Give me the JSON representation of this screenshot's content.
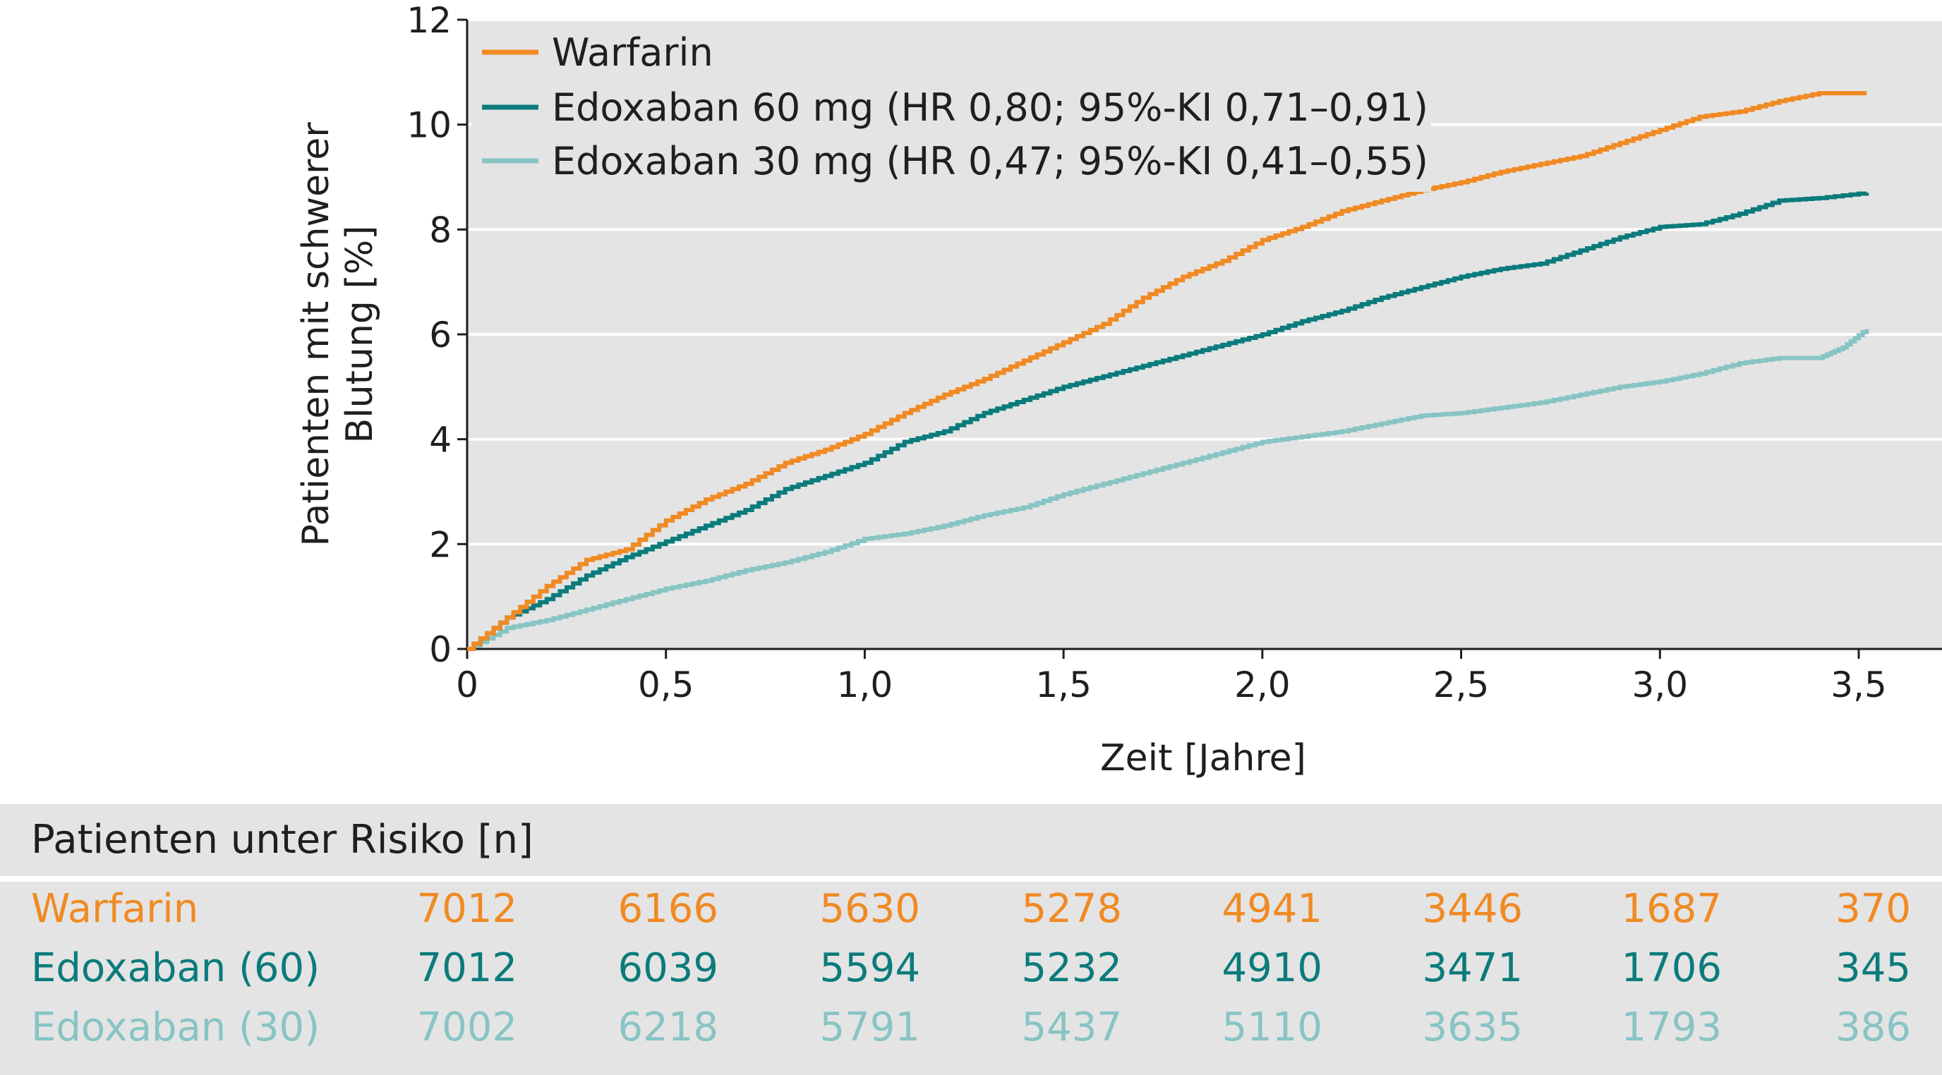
{
  "chart_data": {
    "type": "line",
    "title": "",
    "xlabel": "Zeit [Jahre]",
    "ylabel_lines": [
      "Patienten mit schwerer",
      "Blutung [%]"
    ],
    "xlim": [
      0,
      3.5
    ],
    "ylim": [
      0,
      12
    ],
    "x_ticks": [
      0,
      0.5,
      1.0,
      1.5,
      2.0,
      2.5,
      3.0,
      3.5
    ],
    "x_tick_labels": [
      "0",
      "0,5",
      "1,0",
      "1,5",
      "2,0",
      "2,5",
      "3,0",
      "3,5"
    ],
    "y_ticks": [
      0,
      2,
      4,
      6,
      8,
      10,
      12
    ],
    "y_tick_labels": [
      "0",
      "2",
      "4",
      "6",
      "8",
      "10",
      "12"
    ],
    "grid": "horizontal",
    "legend_position": "top-left",
    "series": [
      {
        "name": "Warfarin",
        "color": "#f08a24",
        "x": [
          0,
          0.1,
          0.2,
          0.3,
          0.4,
          0.5,
          0.6,
          0.7,
          0.8,
          0.9,
          1.0,
          1.1,
          1.2,
          1.3,
          1.4,
          1.5,
          1.6,
          1.7,
          1.8,
          1.9,
          2.0,
          2.1,
          2.2,
          2.3,
          2.4,
          2.5,
          2.6,
          2.7,
          2.8,
          2.9,
          3.0,
          3.1,
          3.2,
          3.3,
          3.4,
          3.52
        ],
        "y": [
          0,
          0.6,
          1.2,
          1.7,
          1.9,
          2.45,
          2.85,
          3.15,
          3.55,
          3.8,
          4.1,
          4.5,
          4.85,
          5.15,
          5.5,
          5.85,
          6.2,
          6.7,
          7.1,
          7.4,
          7.8,
          8.05,
          8.35,
          8.55,
          8.75,
          8.9,
          9.1,
          9.25,
          9.4,
          9.65,
          9.9,
          10.15,
          10.25,
          10.45,
          10.6,
          10.6
        ]
      },
      {
        "name": "Edoxaban 60 mg (HR 0,80; 95%-KI 0,71–0,91)",
        "color": "#0b7b7b",
        "x": [
          0,
          0.1,
          0.2,
          0.3,
          0.4,
          0.5,
          0.6,
          0.7,
          0.8,
          0.9,
          1.0,
          1.1,
          1.2,
          1.3,
          1.4,
          1.5,
          1.6,
          1.7,
          1.8,
          1.9,
          2.0,
          2.1,
          2.2,
          2.3,
          2.4,
          2.5,
          2.6,
          2.7,
          2.8,
          2.9,
          3.0,
          3.1,
          3.2,
          3.3,
          3.4,
          3.52
        ],
        "y": [
          0,
          0.6,
          0.95,
          1.4,
          1.75,
          2.05,
          2.35,
          2.65,
          3.05,
          3.3,
          3.55,
          3.95,
          4.15,
          4.5,
          4.75,
          5.0,
          5.2,
          5.4,
          5.6,
          5.8,
          6.0,
          6.25,
          6.45,
          6.7,
          6.9,
          7.1,
          7.25,
          7.35,
          7.6,
          7.85,
          8.05,
          8.1,
          8.3,
          8.55,
          8.6,
          8.7
        ]
      },
      {
        "name": "Edoxaban 30 mg (HR 0,47; 95%-KI 0,41–0,55)",
        "color": "#88c4c4",
        "x": [
          0,
          0.1,
          0.2,
          0.3,
          0.4,
          0.5,
          0.6,
          0.7,
          0.8,
          0.9,
          1.0,
          1.1,
          1.2,
          1.3,
          1.4,
          1.5,
          1.6,
          1.7,
          1.8,
          1.9,
          2.0,
          2.1,
          2.2,
          2.3,
          2.4,
          2.5,
          2.6,
          2.7,
          2.8,
          2.9,
          3.0,
          3.1,
          3.2,
          3.3,
          3.4,
          3.46,
          3.52
        ],
        "y": [
          0,
          0.4,
          0.55,
          0.75,
          0.95,
          1.15,
          1.3,
          1.5,
          1.65,
          1.85,
          2.1,
          2.2,
          2.35,
          2.55,
          2.7,
          2.95,
          3.15,
          3.35,
          3.55,
          3.75,
          3.95,
          4.05,
          4.15,
          4.3,
          4.45,
          4.5,
          4.6,
          4.7,
          4.85,
          5.0,
          5.1,
          5.25,
          5.45,
          5.55,
          5.55,
          5.75,
          6.1
        ]
      }
    ]
  },
  "risk_table": {
    "title": "Patienten unter Risiko [n]",
    "rows": [
      {
        "label": "Warfarin",
        "color": "#f08a24",
        "values": [
          "7012",
          "6166",
          "5630",
          "5278",
          "4941",
          "3446",
          "1687",
          "370"
        ]
      },
      {
        "label": "Edoxaban (60)",
        "color": "#0b7b7b",
        "values": [
          "7012",
          "6039",
          "5594",
          "5232",
          "4910",
          "3471",
          "1706",
          "345"
        ]
      },
      {
        "label": "Edoxaban (30)",
        "color": "#88c4c4",
        "values": [
          "7002",
          "6218",
          "5791",
          "5437",
          "5110",
          "3635",
          "1793",
          "386"
        ]
      }
    ]
  }
}
